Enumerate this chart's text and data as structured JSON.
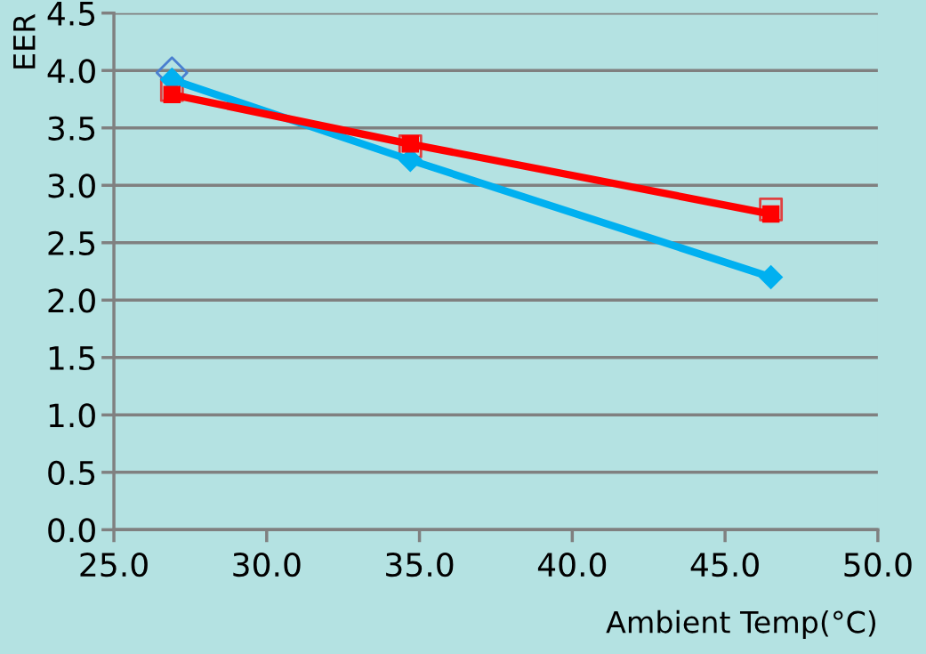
{
  "chart_data": {
    "type": "line",
    "xlabel": "Ambient Temp(°C)",
    "ylabel": "EER",
    "xlim": [
      25,
      50
    ],
    "xticks": [
      {
        "value": 25,
        "label": "25.0"
      },
      {
        "value": 30,
        "label": "30.0"
      },
      {
        "value": 35,
        "label": "35.0"
      },
      {
        "value": 40,
        "label": "40.0"
      },
      {
        "value": 45,
        "label": "45.0"
      },
      {
        "value": 50,
        "label": "50.0"
      }
    ],
    "ylim": [
      0,
      4.5
    ],
    "yticks": [
      {
        "value": 0,
        "label": "0.0"
      },
      {
        "value": 0.5,
        "label": "0.5"
      },
      {
        "value": 1,
        "label": "1.0"
      },
      {
        "value": 1.5,
        "label": "1.5"
      },
      {
        "value": 2,
        "label": "2.0"
      },
      {
        "value": 2.5,
        "label": "2.5"
      },
      {
        "value": 3,
        "label": "3.0"
      },
      {
        "value": 3.5,
        "label": "3.5"
      },
      {
        "value": 4,
        "label": "4.0"
      },
      {
        "value": 4.5,
        "label": "4.5"
      }
    ],
    "grid": "y",
    "series": [
      {
        "type": "scatter",
        "marker": "diamond",
        "color": "#4a7fd0",
        "x": [
          26.9
        ],
        "values": [
          3.98
        ]
      },
      {
        "type": "scatter",
        "marker": "square",
        "color": "#e04040",
        "x": [
          26.9,
          34.7,
          46.5
        ],
        "values": [
          3.83,
          3.34,
          2.79
        ]
      },
      {
        "marker": "diamond",
        "color": "#00b0f0",
        "x": [
          26.9,
          34.7,
          46.5
        ],
        "values": [
          3.92,
          3.22,
          2.2
        ]
      },
      {
        "marker": "square",
        "color": "#ff0000",
        "x": [
          26.9,
          34.7,
          46.5
        ],
        "values": [
          3.79,
          3.36,
          2.75
        ]
      }
    ]
  }
}
